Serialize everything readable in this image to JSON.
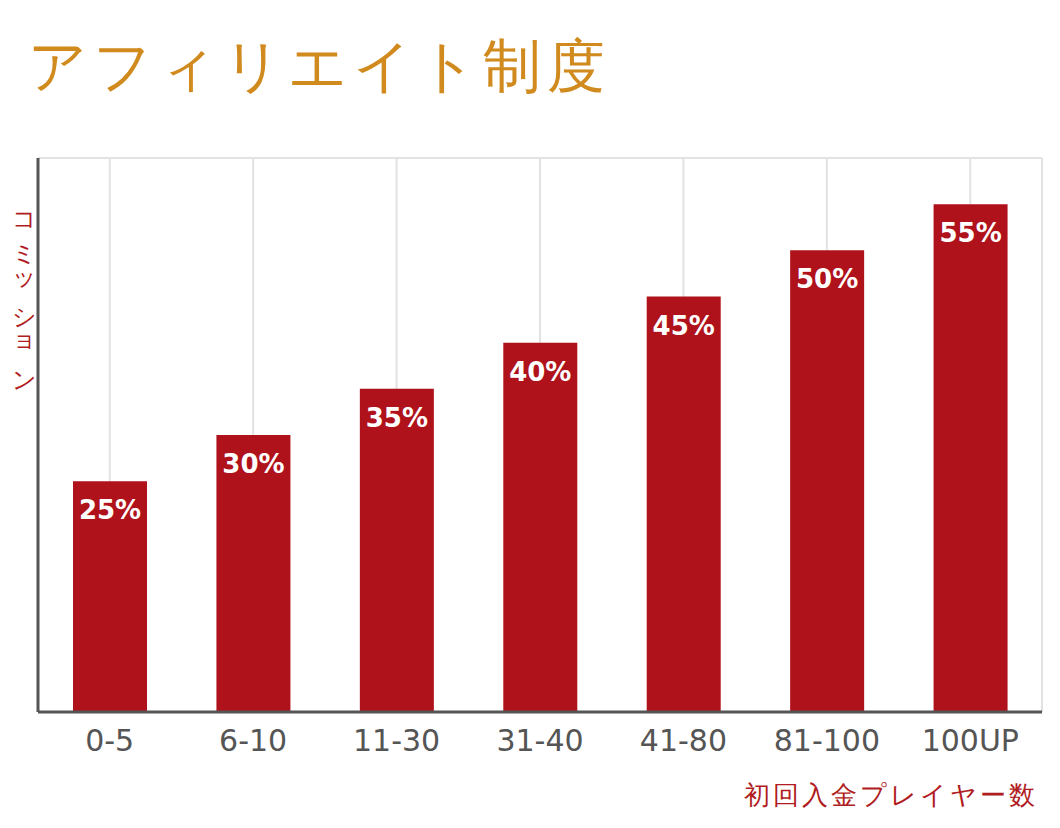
{
  "chart_data": {
    "type": "bar",
    "title": "アフィリエイト制度",
    "y_label": "コミッション",
    "x_label": "初回入金プレイヤー数",
    "categories": [
      "0-5",
      "6-10",
      "11-30",
      "31-40",
      "41-80",
      "81-100",
      "100UP"
    ],
    "values": [
      25,
      30,
      35,
      40,
      45,
      50,
      55
    ],
    "value_labels": [
      "25%",
      "30%",
      "35%",
      "40%",
      "45%",
      "50%",
      "55%"
    ],
    "color": "#b0121b",
    "ylim": [
      0,
      60
    ],
    "yticks": [
      0,
      15,
      30,
      45,
      60
    ],
    "grid": true,
    "data_labels": true,
    "tick_labels": "x"
  }
}
